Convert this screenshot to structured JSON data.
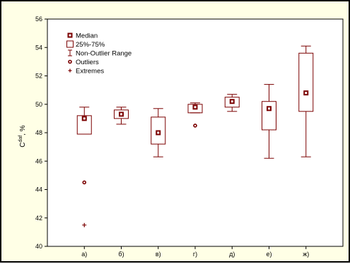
{
  "chart_data": {
    "type": "boxplot",
    "ylabel_main": "C",
    "ylabel_sup": "daf",
    "ylabel_unit": ", %",
    "ylim": [
      40,
      56
    ],
    "yticks": [
      "40",
      "42",
      "44",
      "46",
      "48",
      "50",
      "52",
      "54",
      "56"
    ],
    "categories": [
      "а)",
      "б)",
      "в)",
      "г)",
      "д)",
      "е)",
      "ж)"
    ],
    "boxes": [
      {
        "category": "а)",
        "median": 49.0,
        "q1": 47.9,
        "q3": 49.2,
        "min": 47.9,
        "max": 49.8,
        "outliers": [
          44.5
        ],
        "extremes": [
          41.5
        ]
      },
      {
        "category": "б)",
        "median": 49.3,
        "q1": 49.0,
        "q3": 49.6,
        "min": 48.6,
        "max": 49.8,
        "outliers": [],
        "extremes": []
      },
      {
        "category": "в)",
        "median": 48.0,
        "q1": 47.2,
        "q3": 49.1,
        "min": 46.3,
        "max": 49.7,
        "outliers": [],
        "extremes": []
      },
      {
        "category": "г)",
        "median": 49.8,
        "q1": 49.4,
        "q3": 50.0,
        "min": 49.4,
        "max": 50.1,
        "outliers": [
          48.5
        ],
        "extremes": []
      },
      {
        "category": "д)",
        "median": 50.2,
        "q1": 49.8,
        "q3": 50.5,
        "min": 49.5,
        "max": 50.7,
        "outliers": [],
        "extremes": []
      },
      {
        "category": "е)",
        "median": 49.7,
        "q1": 48.2,
        "q3": 50.2,
        "min": 46.2,
        "max": 51.4,
        "outliers": [],
        "extremes": []
      },
      {
        "category": "ж)",
        "median": 50.8,
        "q1": 49.5,
        "q3": 53.6,
        "min": 46.3,
        "max": 54.1,
        "outliers": [],
        "extremes": []
      }
    ],
    "legend": {
      "position": "top-left",
      "median": "Median",
      "box": "25%-75%",
      "range": "Non-Outlier Range",
      "outliers": "Outliers",
      "extremes": "Extremes"
    },
    "colors": {
      "stroke": "#7b0000",
      "background": "#ffffe6",
      "plot": "#ffffff"
    },
    "grid": false
  }
}
